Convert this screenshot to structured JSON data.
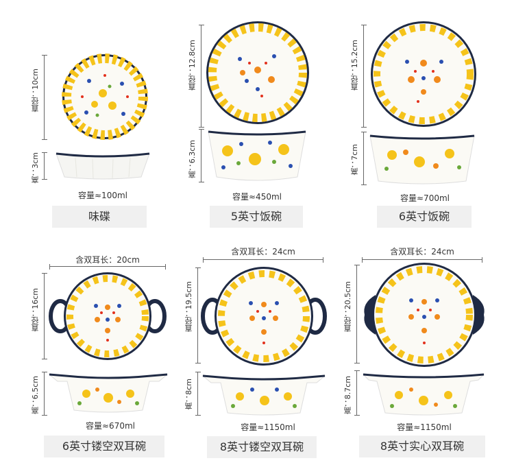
{
  "products": [
    {
      "diameter": "直径：10cm",
      "height": "高：3cm",
      "capacity": "容量≈100ml",
      "name": "味碟"
    },
    {
      "diameter": "直径：12.8cm",
      "height": "高：6.3cm",
      "capacity": "容量≈450ml",
      "name": "5英寸饭碗"
    },
    {
      "diameter": "直径：15.2cm",
      "height": "高：7cm",
      "capacity": "容量≈700ml",
      "name": "6英寸饭碗"
    },
    {
      "length": "含双耳长：20cm",
      "diameter": "直径：16cm",
      "height": "高：6.5cm",
      "capacity": "容量≈670ml",
      "name": "6英寸镂空双耳碗"
    },
    {
      "length": "含双耳长：24cm",
      "diameter": "直径：19.5cm",
      "height": "高：8cm",
      "capacity": "容量≈1150ml",
      "name": "8英寸镂空双耳碗"
    },
    {
      "length": "含双耳长：24cm",
      "diameter": "直径：20.5cm",
      "height": "高：8.7cm",
      "capacity": "容量≈1150ml",
      "name": "8英寸实心双耳碗"
    }
  ],
  "colors": {
    "rim": "#1f2a44",
    "glaze": "#fbfaf5",
    "petal_yellow": "#f5c31a",
    "petal_orange": "#f08a1c",
    "flower_blue": "#2a4fb0",
    "leaf": "#6aa83a",
    "dot_red": "#e3311d"
  }
}
